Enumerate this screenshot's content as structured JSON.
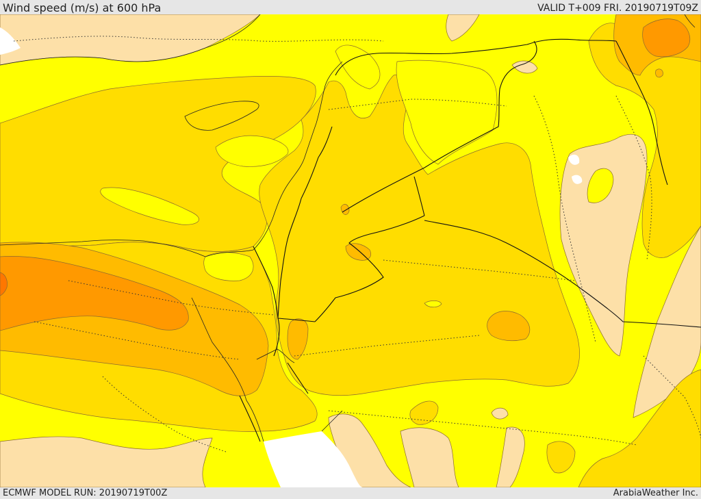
{
  "header": {
    "title": "Wind speed (m/s) at 600 hPa",
    "valid": "VALID T+009 FRI. 20190719T09Z"
  },
  "footer": {
    "model_run": "ECMWF MODEL RUN: 20190719T00Z",
    "credit": "ArabiaWeather Inc."
  },
  "colors": {
    "band_1": "#ffff00",
    "band_2": "#ffdd00",
    "band_3": "#ffbb00",
    "band_4": "#ff9900",
    "band_5": "#ff7700",
    "calm": "#fde0a8",
    "missing": "#ffffff"
  }
}
